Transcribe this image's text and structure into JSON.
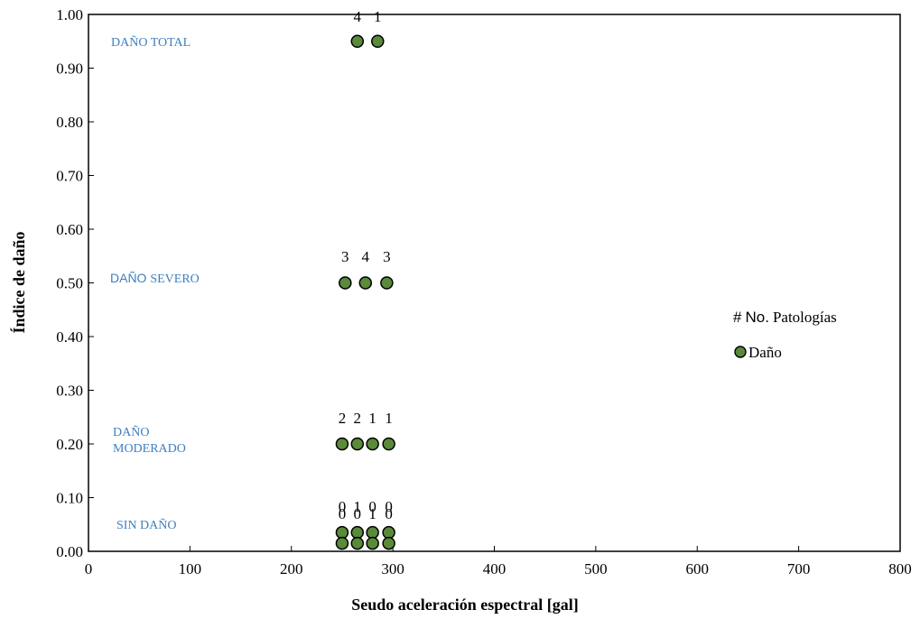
{
  "chart_data": {
    "type": "scatter",
    "title": "",
    "xlabel": "Seudo aceleración espectral [gal]",
    "ylabel": "Índice de daño",
    "xlim": [
      0,
      800
    ],
    "ylim": [
      0,
      1.0
    ],
    "xticks": [
      0,
      100,
      200,
      300,
      400,
      500,
      600,
      700,
      800
    ],
    "yticks": [
      "0.00",
      "0.10",
      "0.20",
      "0.30",
      "0.40",
      "0.50",
      "0.60",
      "0.70",
      "0.80",
      "0.90",
      "1.00"
    ],
    "grid": false,
    "legend": {
      "header_symbol": "#",
      "header_text": "No. Patologías",
      "entry": "Daño",
      "placement": "right"
    },
    "marker_color": "#5a8a3a",
    "annotation_color": "#3f7fbf",
    "damage_levels": [
      {
        "lines": [
          "DAÑO TOTAL"
        ],
        "y": 0.95
      },
      {
        "lines": [
          "DAÑO SEVERO"
        ],
        "y": 0.5
      },
      {
        "lines": [
          "DAÑO",
          "MODERADO"
        ],
        "y": 0.2
      },
      {
        "lines": [
          "SIN DAÑO"
        ],
        "y": 0.05
      }
    ],
    "series": [
      {
        "name": "Daño",
        "points": [
          {
            "x": 265,
            "y": 0.95,
            "label": "4"
          },
          {
            "x": 285,
            "y": 0.95,
            "label": "1"
          },
          {
            "x": 253,
            "y": 0.5,
            "label": "3"
          },
          {
            "x": 273,
            "y": 0.5,
            "label": "4"
          },
          {
            "x": 294,
            "y": 0.5,
            "label": "3"
          },
          {
            "x": 250,
            "y": 0.2,
            "label": "2"
          },
          {
            "x": 265,
            "y": 0.2,
            "label": "2"
          },
          {
            "x": 280,
            "y": 0.2,
            "label": "1"
          },
          {
            "x": 296,
            "y": 0.2,
            "label": "1"
          },
          {
            "x": 250,
            "y": 0.035,
            "label": "0"
          },
          {
            "x": 265,
            "y": 0.035,
            "label": "1"
          },
          {
            "x": 280,
            "y": 0.035,
            "label": "0"
          },
          {
            "x": 296,
            "y": 0.035,
            "label": "0"
          },
          {
            "x": 250,
            "y": 0.015,
            "label": "0"
          },
          {
            "x": 265,
            "y": 0.015,
            "label": "0"
          },
          {
            "x": 280,
            "y": 0.015,
            "label": "1"
          },
          {
            "x": 296,
            "y": 0.015,
            "label": "0"
          }
        ]
      }
    ]
  }
}
